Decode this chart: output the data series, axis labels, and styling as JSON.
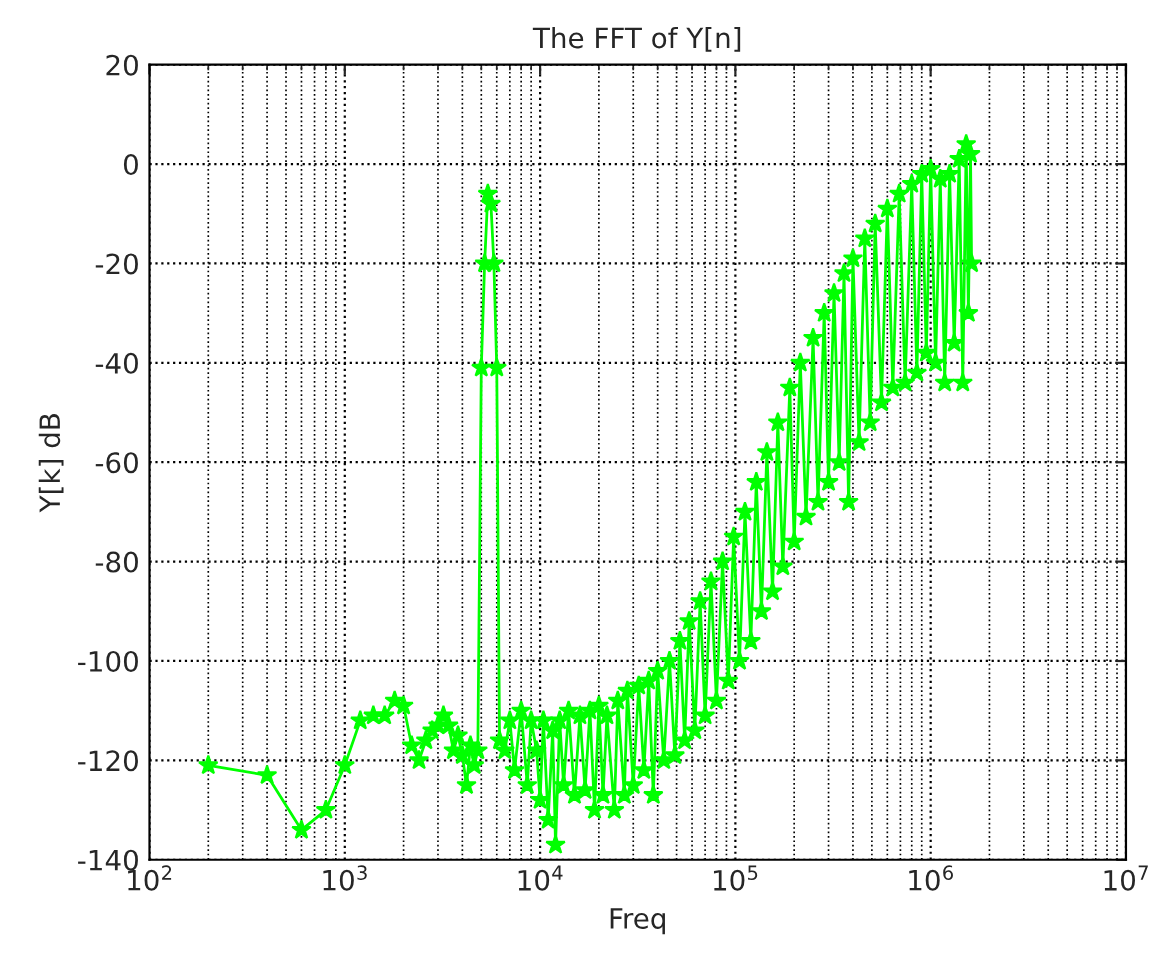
{
  "chart_data": {
    "type": "line",
    "title": "The FFT of Y[n]",
    "xlabel": "Freq",
    "ylabel": "Y[k] dB",
    "log": "x",
    "grid": true,
    "marker": "star",
    "line_style": "solid",
    "xlim": [
      100,
      10000000
    ],
    "ylim": [
      -140,
      20
    ],
    "xticks": [
      {
        "value": 100,
        "label": "10$^{2}$"
      },
      {
        "value": 1000,
        "label": "10$^{3}$"
      },
      {
        "value": 10000,
        "label": "10$^{4}$"
      },
      {
        "value": 100000,
        "label": "10$^{5}$"
      },
      {
        "value": 1000000,
        "label": "10$^{6}$"
      },
      {
        "value": 10000000,
        "label": "10$^{7}$"
      }
    ],
    "yticks": [
      -140,
      -120,
      -100,
      -80,
      -60,
      -40,
      -20,
      0,
      20
    ],
    "series": [
      {
        "color": "#00ff00",
        "x": [
          200,
          400,
          600,
          800,
          1000,
          1200,
          1400,
          1600,
          1800,
          2000,
          2200,
          2400,
          2600,
          2800,
          3000,
          3200,
          3400,
          3600,
          3800,
          4000,
          4200,
          4400,
          4600,
          4800,
          5000,
          5200,
          5400,
          5600,
          5800,
          6000,
          6200,
          6600,
          7000,
          7400,
          8000,
          8600,
          9000,
          9600,
          10000,
          10400,
          11000,
          11600,
          12000,
          12600,
          13200,
          14000,
          15000,
          16000,
          17000,
          18000,
          19000,
          20000,
          21000,
          22000,
          24000,
          25000,
          27000,
          28000,
          30000,
          32000,
          34000,
          36000,
          38000,
          40000,
          43000,
          46000,
          49000,
          52000,
          55000,
          58000,
          62000,
          66000,
          70000,
          75000,
          80000,
          86000,
          92000,
          98000,
          105000,
          112000,
          120000,
          128000,
          136000,
          145000,
          155000,
          165000,
          175000,
          190000,
          200000,
          215000,
          230000,
          250000,
          265000,
          285000,
          300000,
          320000,
          340000,
          360000,
          380000,
          400000,
          430000,
          460000,
          490000,
          520000,
          560000,
          600000,
          640000,
          690000,
          740000,
          800000,
          850000,
          900000,
          950000,
          1000000,
          1060000,
          1120000,
          1180000,
          1250000,
          1320000,
          1400000,
          1460000,
          1520000,
          1560000,
          1600000,
          1620000
        ],
        "values": [
          -121,
          -123,
          -134,
          -130,
          -121,
          -112,
          -111,
          -111,
          -108,
          -109,
          -117,
          -120,
          -116,
          -114,
          -113,
          -111,
          -113,
          -118,
          -115,
          -119,
          -125,
          -117,
          -121,
          -118,
          -41,
          -20,
          -6,
          -8,
          -20,
          -41,
          -116,
          -118,
          -112,
          -122,
          -110,
          -125,
          -112,
          -118,
          -128,
          -112,
          -132,
          -114,
          -137,
          -112,
          -125,
          -110,
          -127,
          -111,
          -126,
          -110,
          -130,
          -109,
          -127,
          -111,
          -130,
          -108,
          -127,
          -106,
          -125,
          -105,
          -122,
          -104,
          -127,
          -102,
          -120,
          -100,
          -119,
          -96,
          -116,
          -92,
          -114,
          -88,
          -111,
          -84,
          -108,
          -80,
          -104,
          -75,
          -100,
          -70,
          -96,
          -64,
          -90,
          -58,
          -86,
          -52,
          -81,
          -45,
          -76,
          -40,
          -71,
          -35,
          -68,
          -30,
          -64,
          -26,
          -60,
          -22,
          -68,
          -19,
          -56,
          -15,
          -52,
          -12,
          -48,
          -9,
          -45,
          -6,
          -44,
          -4,
          -42,
          -2,
          -38,
          -1,
          -40,
          -3,
          -44,
          -2,
          -36,
          1,
          -44,
          4,
          -30,
          2,
          -20
        ]
      }
    ]
  }
}
